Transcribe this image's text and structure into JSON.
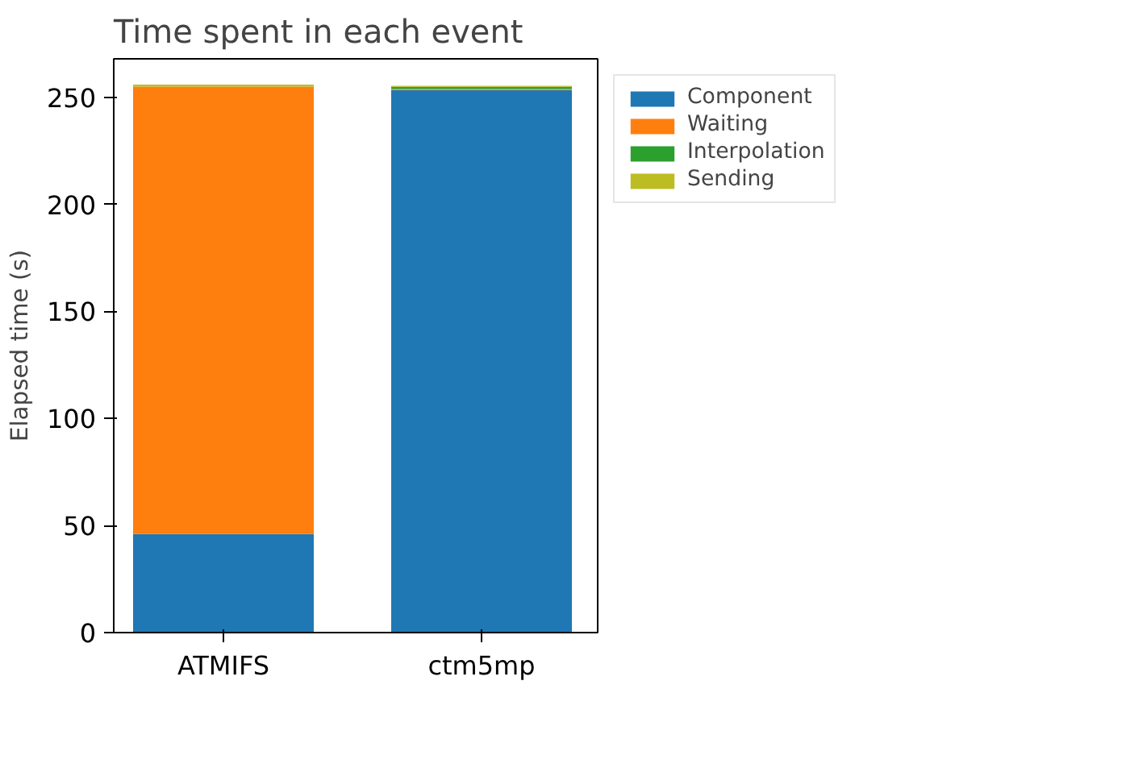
{
  "chart_data": {
    "type": "bar",
    "title": "Time spent in each event",
    "ylabel": "Elapsed time (s)",
    "categories": [
      "ATMIFS",
      "ctm5mp"
    ],
    "stacked": true,
    "series": [
      {
        "name": "Component",
        "color": "#1f77b4",
        "values": [
          46,
          253.4
        ]
      },
      {
        "name": "Waiting",
        "color": "#ff7f0e",
        "values": [
          209,
          0.5
        ]
      },
      {
        "name": "Interpolation",
        "color": "#2ca02c",
        "values": [
          null,
          1
        ]
      },
      {
        "name": "Sending",
        "color": "#bcbd22",
        "values": [
          1,
          0.5
        ]
      }
    ],
    "ylim": [
      0,
      268
    ],
    "yticks": [
      0,
      50,
      100,
      150,
      200,
      250
    ],
    "grid": false,
    "legend": "top right"
  }
}
